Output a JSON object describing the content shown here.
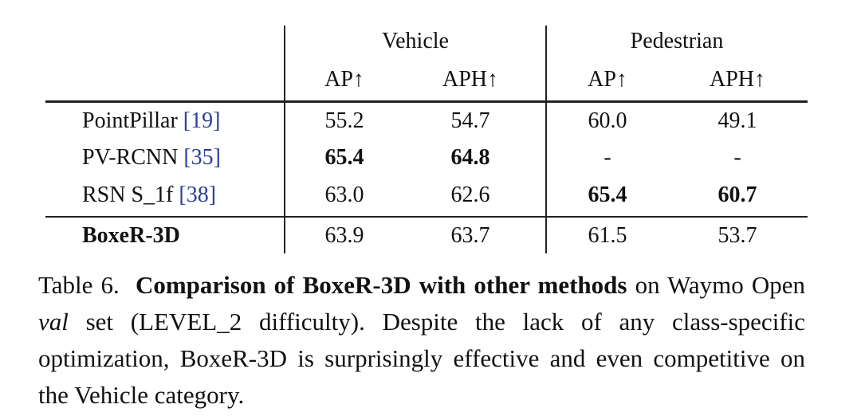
{
  "table": {
    "groups": [
      "Vehicle",
      "Pedestrian"
    ],
    "columns": [
      "AP↑",
      "APH↑",
      "AP↑",
      "APH↑"
    ],
    "rows": [
      {
        "method": "PointPillar",
        "cite": "[19]",
        "cells": [
          "55.2",
          "54.7",
          "60.0",
          "49.1"
        ],
        "bold": []
      },
      {
        "method": "PV-RCNN",
        "cite": "[35]",
        "cells": [
          "65.4",
          "64.8",
          "-",
          "-"
        ],
        "bold": [
          0,
          1
        ]
      },
      {
        "method": "RSN S_1f",
        "cite": "[38]",
        "cells": [
          "63.0",
          "62.6",
          "65.4",
          "60.7"
        ],
        "bold": [
          2,
          3
        ]
      },
      {
        "method": "BoxeR-3D",
        "cells": [
          "63.9",
          "63.7",
          "61.5",
          "53.7"
        ],
        "bold": [],
        "method_bold": true
      }
    ]
  },
  "caption": {
    "label": "Table 6.",
    "bold": "Comparison of BoxeR-3D with other methods",
    "text1": "on Waymo Open",
    "italic": "val",
    "text2": "set (LEVEL_2 difficulty). Despite the lack of any class-specific optimization, BoxeR-3D is surprisingly effective and even competitive on the Vehicle category."
  }
}
